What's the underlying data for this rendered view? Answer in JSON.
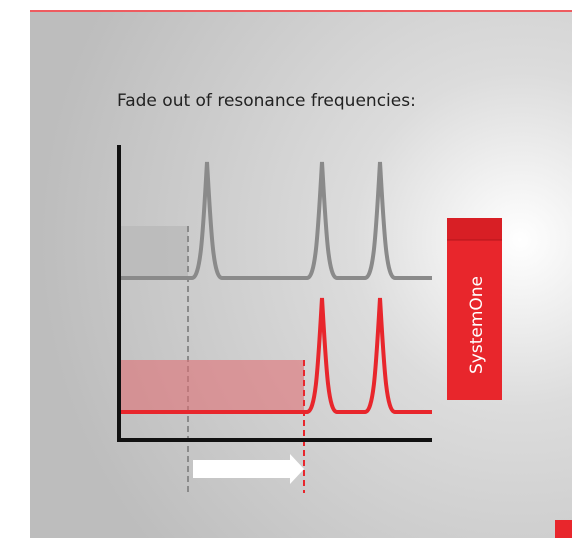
{
  "title": "Fade out of resonance frequencies:",
  "tag": "SystemOne"
}
